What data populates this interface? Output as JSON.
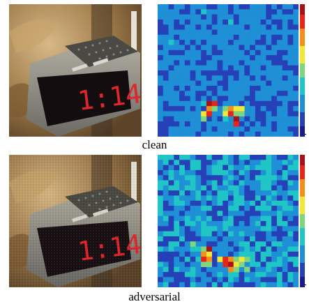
{
  "panels": [
    {
      "caption": "clean",
      "photo": {
        "clock_digits": "1:14",
        "noise": "low"
      },
      "heatmap": {
        "background_level": 0.2,
        "noise_level": "low",
        "hotspot_level": "high"
      }
    },
    {
      "caption": "adversarial",
      "photo": {
        "clock_digits": "1:14",
        "noise": "visible"
      },
      "heatmap": {
        "background_level": 0.25,
        "noise_level": "high",
        "hotspot_level": "high"
      }
    }
  ],
  "colors": {
    "heat_background": "#2b3aaa",
    "colormap": [
      "#1a1a8c",
      "#2640b8",
      "#1f8fd6",
      "#20c6c6",
      "#7fd67f",
      "#f2e83a",
      "#f58f1c",
      "#e8251c",
      "#a8101a"
    ]
  }
}
